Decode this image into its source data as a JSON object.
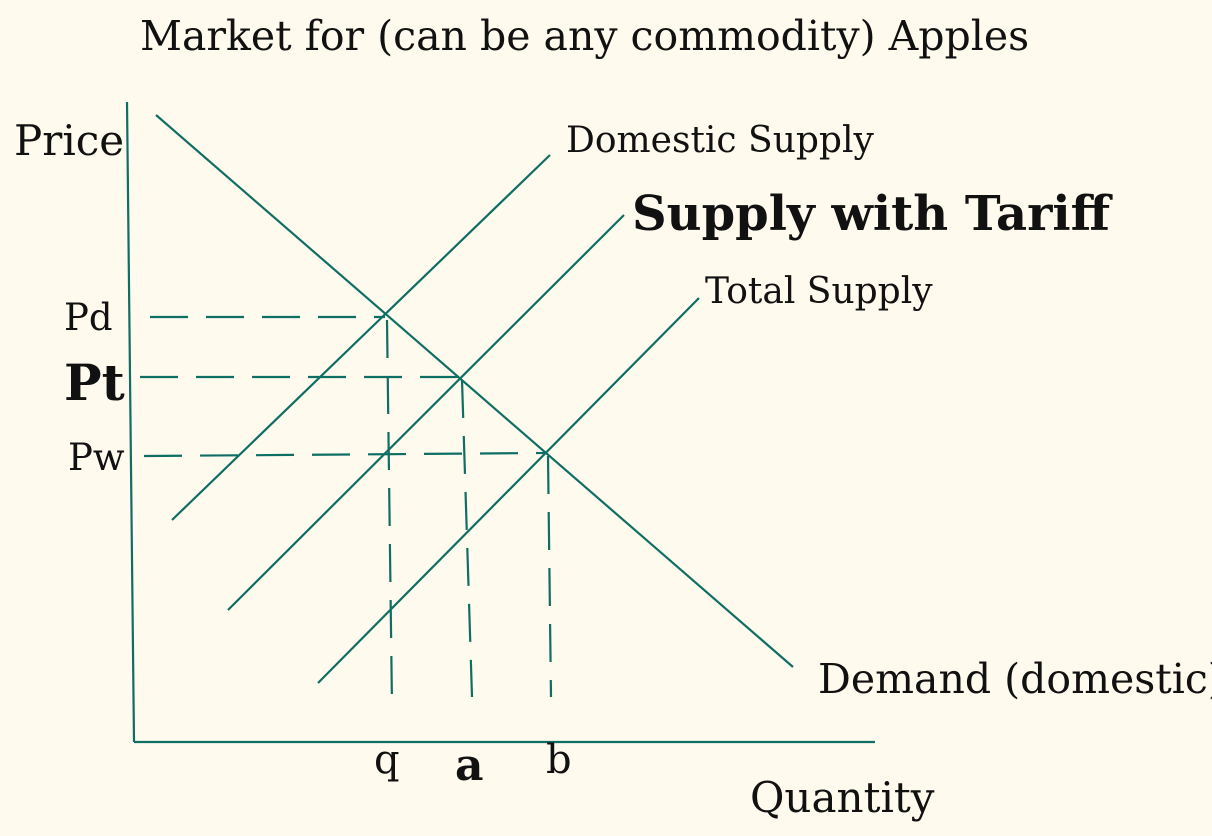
{
  "colors": {
    "background": "#fffaee",
    "line": "#0f6e64",
    "text": "#111111"
  },
  "title": "Market for (can be any commodity) Apples",
  "axes": {
    "y_label": "Price",
    "x_label": "Quantity"
  },
  "price_levels": {
    "pd": "Pd",
    "pt": "Pt",
    "pw": "Pw"
  },
  "quantity_levels": {
    "q": "q",
    "a": "a",
    "b": "b"
  },
  "curves": {
    "demand": "Demand (domestic)",
    "domestic_supply": "Domestic Supply",
    "supply_with_tariff": "Supply with Tariff",
    "total_supply": "Total Supply"
  }
}
